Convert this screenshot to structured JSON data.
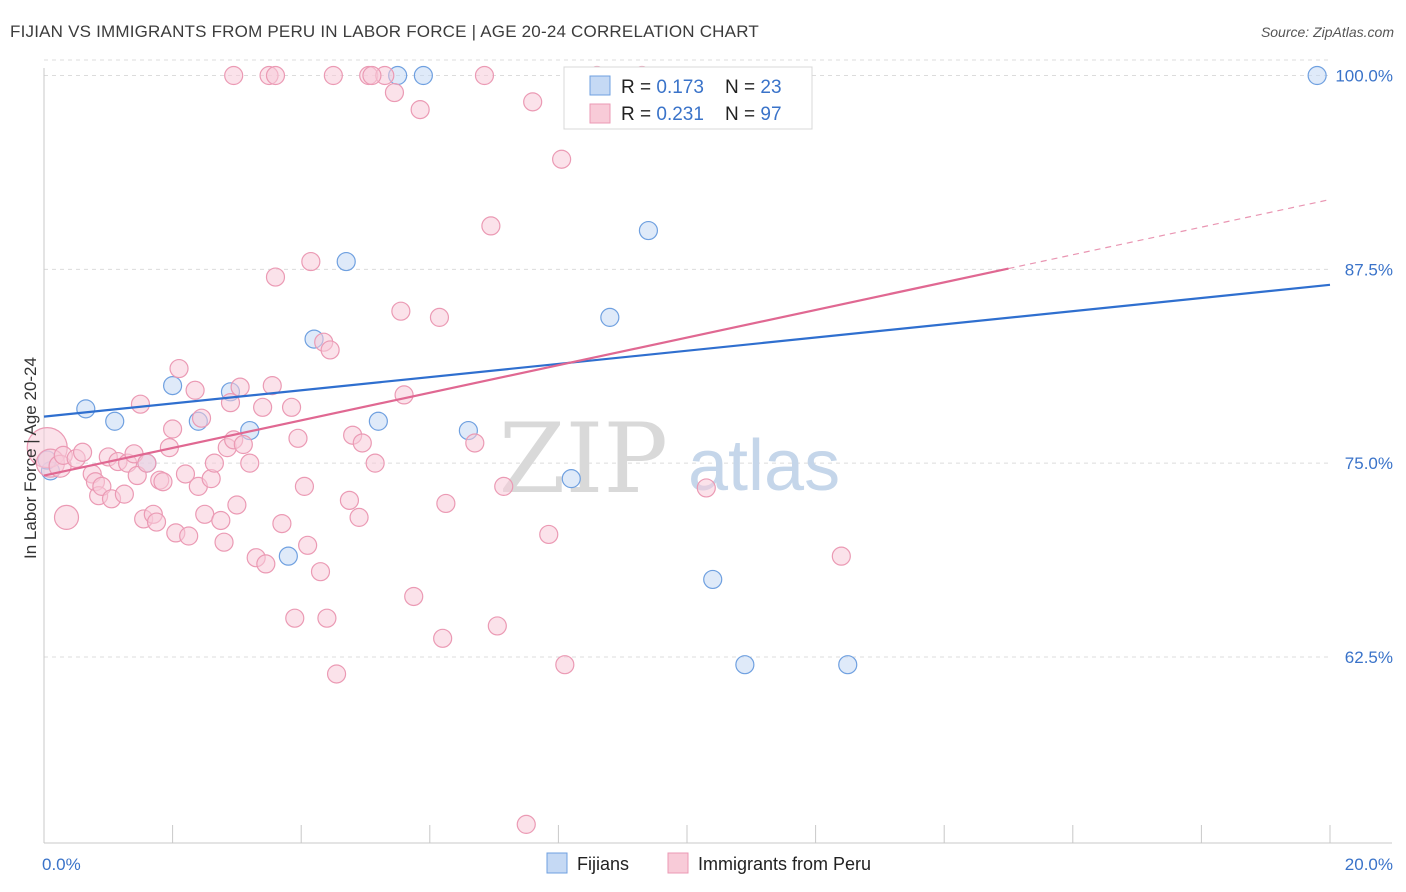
{
  "chart_data": {
    "type": "scatter",
    "title": "FIJIAN VS IMMIGRANTS FROM PERU IN LABOR FORCE | AGE 20-24 CORRELATION CHART",
    "source": "Source: ZipAtlas.com",
    "ylabel": "In Labor Force | Age 20-24",
    "xlabel": "",
    "xlim": [
      0,
      20
    ],
    "ylim": [
      50.5,
      101
    ],
    "x_tick_labels": [
      "0.0%",
      "20.0%"
    ],
    "y_ticks": [
      62.5,
      75.0,
      87.5,
      100.0
    ],
    "y_tick_labels": [
      "62.5%",
      "75.0%",
      "87.5%",
      "100.0%"
    ],
    "grid": true,
    "watermark": {
      "zip": "ZIP",
      "atlas": "atlas"
    },
    "legend_box": {
      "r_label": "R = ",
      "n_label": "N = ",
      "rows": [
        {
          "r": "0.173",
          "n": "23"
        },
        {
          "r": "0.231",
          "n": "97"
        }
      ]
    },
    "series": [
      {
        "name": "Fijians",
        "color": "#6fa0e0",
        "fill": "#c5d9f4",
        "line_color": "#2f6fcf",
        "trend": {
          "x0": 0,
          "y0": 78.0,
          "x1": 20,
          "y1": 86.5,
          "dash_from": null
        },
        "points": [
          [
            0.1,
            74.5,
            9
          ],
          [
            0.65,
            78.5,
            9
          ],
          [
            1.1,
            77.7,
            9
          ],
          [
            1.6,
            75.0,
            9
          ],
          [
            2.0,
            80.0,
            9
          ],
          [
            2.4,
            77.7,
            9
          ],
          [
            2.9,
            79.6,
            9
          ],
          [
            3.2,
            77.1,
            9
          ],
          [
            3.8,
            69.0,
            9
          ],
          [
            4.2,
            83.0,
            9
          ],
          [
            4.7,
            88.0,
            9
          ],
          [
            5.5,
            100.0,
            9
          ],
          [
            5.2,
            77.7,
            9
          ],
          [
            5.9,
            100.0,
            9
          ],
          [
            6.6,
            77.1,
            9
          ],
          [
            8.2,
            74.0,
            9
          ],
          [
            8.8,
            84.4,
            9
          ],
          [
            9.4,
            90.0,
            9
          ],
          [
            10.4,
            67.5,
            9
          ],
          [
            10.9,
            62.0,
            9
          ],
          [
            12.5,
            62.0,
            9
          ],
          [
            19.8,
            100.0,
            9
          ],
          [
            0.05,
            75.2,
            9
          ]
        ]
      },
      {
        "name": "Immigrants from Peru",
        "color": "#eb9ab4",
        "fill": "#f8cbd8",
        "line_color": "#e06892",
        "trend": {
          "x0": 0,
          "y0": 74.2,
          "x1": 20,
          "y1": 92.0,
          "dash_from": 15.0
        },
        "points": [
          [
            0.05,
            76.0,
            20
          ],
          [
            0.1,
            75.0,
            14
          ],
          [
            0.25,
            74.8,
            11
          ],
          [
            0.3,
            75.5,
            9
          ],
          [
            0.35,
            71.5,
            12
          ],
          [
            0.5,
            75.3,
            9
          ],
          [
            0.6,
            75.7,
            9
          ],
          [
            0.75,
            74.3,
            9
          ],
          [
            0.8,
            73.8,
            9
          ],
          [
            0.85,
            72.9,
            9
          ],
          [
            0.9,
            73.5,
            9
          ],
          [
            1.0,
            75.4,
            9
          ],
          [
            1.05,
            72.7,
            9
          ],
          [
            1.15,
            75.1,
            9
          ],
          [
            1.25,
            73.0,
            9
          ],
          [
            1.3,
            75.0,
            9
          ],
          [
            1.4,
            75.6,
            9
          ],
          [
            1.45,
            74.2,
            9
          ],
          [
            1.5,
            78.8,
            9
          ],
          [
            1.55,
            71.4,
            9
          ],
          [
            1.6,
            75.0,
            9
          ],
          [
            1.7,
            71.7,
            9
          ],
          [
            1.75,
            71.2,
            9
          ],
          [
            1.8,
            73.9,
            9
          ],
          [
            1.85,
            73.8,
            9
          ],
          [
            1.95,
            76.0,
            9
          ],
          [
            2.0,
            77.2,
            9
          ],
          [
            2.05,
            70.5,
            9
          ],
          [
            2.1,
            81.1,
            9
          ],
          [
            2.2,
            74.3,
            9
          ],
          [
            2.25,
            70.3,
            9
          ],
          [
            2.35,
            79.7,
            9
          ],
          [
            2.4,
            73.5,
            9
          ],
          [
            2.45,
            77.9,
            9
          ],
          [
            2.5,
            71.7,
            9
          ],
          [
            2.6,
            74.0,
            9
          ],
          [
            2.65,
            75.0,
            9
          ],
          [
            2.75,
            71.3,
            9
          ],
          [
            2.8,
            69.9,
            9
          ],
          [
            2.85,
            76.0,
            9
          ],
          [
            2.9,
            78.9,
            9
          ],
          [
            2.95,
            76.5,
            9
          ],
          [
            3.0,
            72.3,
            9
          ],
          [
            3.05,
            79.9,
            9
          ],
          [
            3.1,
            76.2,
            9
          ],
          [
            3.2,
            75.0,
            9
          ],
          [
            3.3,
            68.9,
            9
          ],
          [
            3.4,
            78.6,
            9
          ],
          [
            3.45,
            68.5,
            9
          ],
          [
            3.5,
            100.0,
            9
          ],
          [
            3.55,
            80.0,
            9
          ],
          [
            3.6,
            87.0,
            9
          ],
          [
            3.7,
            71.1,
            9
          ],
          [
            3.85,
            78.6,
            9
          ],
          [
            3.9,
            65.0,
            9
          ],
          [
            3.95,
            76.6,
            9
          ],
          [
            4.05,
            73.5,
            9
          ],
          [
            4.1,
            69.7,
            9
          ],
          [
            4.15,
            88.0,
            9
          ],
          [
            4.3,
            68.0,
            9
          ],
          [
            4.35,
            82.8,
            9
          ],
          [
            4.4,
            65.0,
            9
          ],
          [
            4.45,
            82.3,
            9
          ],
          [
            4.55,
            61.4,
            9
          ],
          [
            4.75,
            72.6,
            9
          ],
          [
            4.8,
            76.8,
            9
          ],
          [
            4.9,
            71.5,
            9
          ],
          [
            4.95,
            76.3,
            9
          ],
          [
            5.05,
            100.0,
            9
          ],
          [
            5.15,
            75.0,
            9
          ],
          [
            5.3,
            100.0,
            9
          ],
          [
            5.45,
            98.9,
            9
          ],
          [
            5.55,
            84.8,
            9
          ],
          [
            5.6,
            79.4,
            9
          ],
          [
            5.75,
            66.4,
            9
          ],
          [
            5.85,
            97.8,
            9
          ],
          [
            6.15,
            84.4,
            9
          ],
          [
            6.2,
            63.7,
            9
          ],
          [
            6.25,
            72.4,
            9
          ],
          [
            6.7,
            76.3,
            9
          ],
          [
            6.85,
            100.0,
            9
          ],
          [
            6.95,
            90.3,
            9
          ],
          [
            7.05,
            64.5,
            9
          ],
          [
            7.15,
            73.5,
            9
          ],
          [
            7.5,
            51.7,
            9
          ],
          [
            7.6,
            98.3,
            9
          ],
          [
            7.85,
            70.4,
            9
          ],
          [
            8.05,
            94.6,
            9
          ],
          [
            8.1,
            62.0,
            9
          ],
          [
            8.6,
            100.0,
            9
          ],
          [
            3.6,
            100.0,
            9
          ],
          [
            10.3,
            73.4,
            9
          ],
          [
            12.4,
            69.0,
            9
          ],
          [
            9.3,
            100.0,
            9
          ],
          [
            2.95,
            100.0,
            9
          ],
          [
            5.1,
            100.0,
            9
          ],
          [
            4.5,
            100.0,
            9
          ]
        ]
      }
    ]
  }
}
